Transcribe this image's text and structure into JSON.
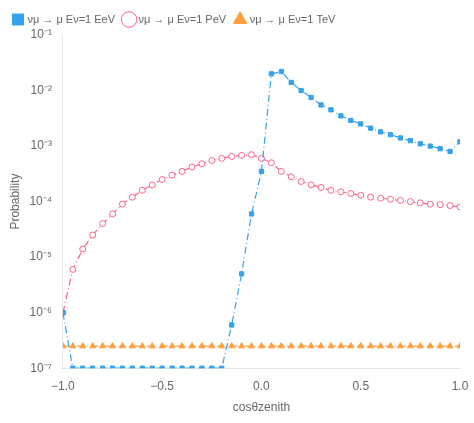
{
  "chart_data": {
    "type": "line",
    "x_label": "cosθzenith",
    "y_label": "Probability",
    "log": "y",
    "grid": false,
    "legend": "upper left",
    "line_style": "dashdot",
    "xlim": [
      -1,
      1
    ],
    "ylim": [
      1e-07,
      0.1
    ],
    "xticks": [
      {
        "value": -1,
        "label": "−1.0"
      },
      {
        "value": -0.5,
        "label": "−0.5"
      },
      {
        "value": 0,
        "label": "0.0"
      },
      {
        "value": 0.5,
        "label": "0.5"
      },
      {
        "value": 1,
        "label": "1.0"
      }
    ],
    "yticks": [
      {
        "value": 1e-07,
        "label": "10⁻⁷"
      },
      {
        "value": 1e-06,
        "label": "10⁻⁶"
      },
      {
        "value": 1e-05,
        "label": "10⁻⁵"
      },
      {
        "value": 0.0001,
        "label": "10⁻⁴"
      },
      {
        "value": 0.001,
        "label": "10⁻³"
      },
      {
        "value": 0.01,
        "label": "10⁻²"
      },
      {
        "value": 0.1,
        "label": "10⁻¹"
      }
    ],
    "x": [
      -1.0,
      -0.95,
      -0.9,
      -0.85,
      -0.8,
      -0.75,
      -0.7,
      -0.65,
      -0.6,
      -0.55,
      -0.5,
      -0.45,
      -0.4,
      -0.35,
      -0.3,
      -0.25,
      -0.2,
      -0.15,
      -0.1,
      -0.05,
      0.0,
      0.05,
      0.1,
      0.15,
      0.2,
      0.25,
      0.3,
      0.35,
      0.4,
      0.45,
      0.5,
      0.55,
      0.6,
      0.65,
      0.7,
      0.75,
      0.8,
      0.85,
      0.9,
      0.95,
      1.0
    ],
    "series": [
      {
        "name": "νμ → μ Eν=1 EeV",
        "marker": "square",
        "values": [
          1e-06,
          1e-07,
          1e-07,
          1e-07,
          1e-07,
          1e-07,
          1e-07,
          1e-07,
          1e-07,
          1e-07,
          1e-07,
          1e-07,
          1e-07,
          1e-07,
          1e-07,
          1e-07,
          1e-07,
          6e-07,
          5e-06,
          6e-05,
          0.00035,
          0.02,
          0.022,
          0.014,
          0.01,
          0.0075,
          0.0055,
          0.0045,
          0.0035,
          0.0029,
          0.0025,
          0.0021,
          0.0018,
          0.0016,
          0.0014,
          0.00125,
          0.0011,
          0.001,
          0.0009,
          0.0008,
          0.0012
        ]
      },
      {
        "name": "νμ → μ Eν=1 PeV",
        "marker": "open_circle",
        "values": [
          1e-06,
          6e-06,
          1.4e-05,
          2.5e-05,
          4e-05,
          6e-05,
          9e-05,
          0.00012,
          0.00016,
          0.0002,
          0.00025,
          0.0003,
          0.00035,
          0.00042,
          0.00048,
          0.00055,
          0.0006,
          0.00065,
          0.00068,
          0.0007,
          0.0006,
          0.0005,
          0.00035,
          0.00028,
          0.00023,
          0.0002,
          0.00018,
          0.00016,
          0.00015,
          0.00014,
          0.00013,
          0.00012,
          0.000115,
          0.00011,
          0.000105,
          0.0001,
          9.5e-05,
          9e-05,
          8.8e-05,
          8.5e-05,
          8e-05
        ]
      },
      {
        "name": "νμ → μ Eν=1 TeV",
        "marker": "triangle",
        "values": [
          2.5e-07,
          2.5e-07,
          2.5e-07,
          2.5e-07,
          2.5e-07,
          2.5e-07,
          2.5e-07,
          2.5e-07,
          2.5e-07,
          2.5e-07,
          2.5e-07,
          2.5e-07,
          2.5e-07,
          2.5e-07,
          2.5e-07,
          2.5e-07,
          2.5e-07,
          2.5e-07,
          2.5e-07,
          2.5e-07,
          2.5e-07,
          2.5e-07,
          2.5e-07,
          2.5e-07,
          2.5e-07,
          2.5e-07,
          2.5e-07,
          2.5e-07,
          2.5e-07,
          2.5e-07,
          2.5e-07,
          2.5e-07,
          2.5e-07,
          2.5e-07,
          2.5e-07,
          2.5e-07,
          2.5e-07,
          2.5e-07,
          2.5e-07,
          2.5e-07,
          2.5e-07
        ]
      }
    ]
  }
}
